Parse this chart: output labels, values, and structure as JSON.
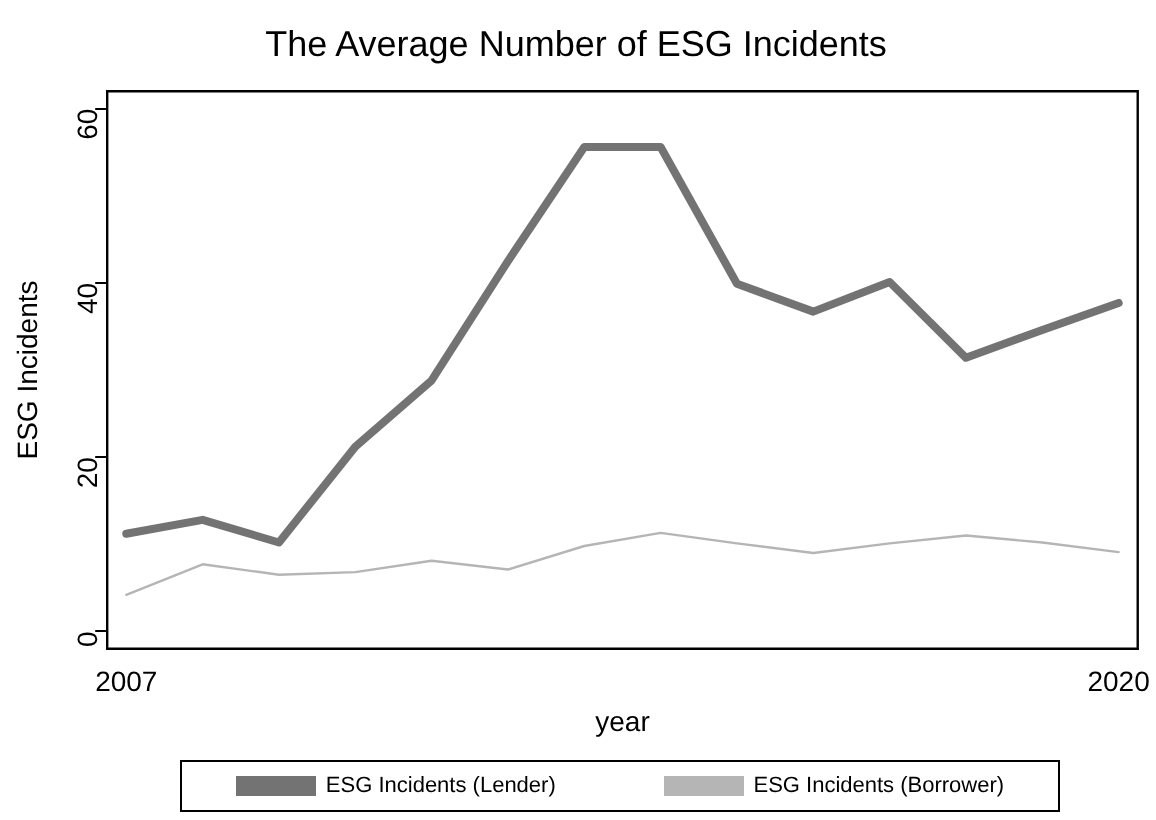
{
  "chart_data": {
    "type": "line",
    "title": "The Average Number of ESG Incidents",
    "xlabel": "year",
    "ylabel": "ESG Incidents",
    "x": [
      2007,
      2008,
      2009,
      2010,
      2011,
      2012,
      2013,
      2014,
      2015,
      2016,
      2017,
      2018,
      2019,
      2020
    ],
    "series": [
      {
        "name": "ESG Incidents (Lender)",
        "color": "#737373",
        "values": [
          11.2,
          12.8,
          10.2,
          21.2,
          28.8,
          42.5,
          55.6,
          55.6,
          39.9,
          36.7,
          40.1,
          31.4,
          34.6,
          37.7
        ]
      },
      {
        "name": "ESG Incidents (Borrower)",
        "color": "#b5b5b5",
        "values": [
          4.2,
          7.7,
          6.5,
          6.8,
          8.1,
          7.1,
          9.8,
          11.3,
          10.1,
          9.0,
          10.1,
          11.0,
          10.2,
          9.1
        ]
      }
    ],
    "xlim": [
      2006.75,
      2020.25
    ],
    "xticks": [
      2007,
      2020
    ],
    "ylim": [
      -2,
      62
    ],
    "yticks": [
      0,
      20,
      40,
      60
    ],
    "grid": false,
    "legend": "bottom",
    "marker": "none",
    "line_style": "solid"
  }
}
